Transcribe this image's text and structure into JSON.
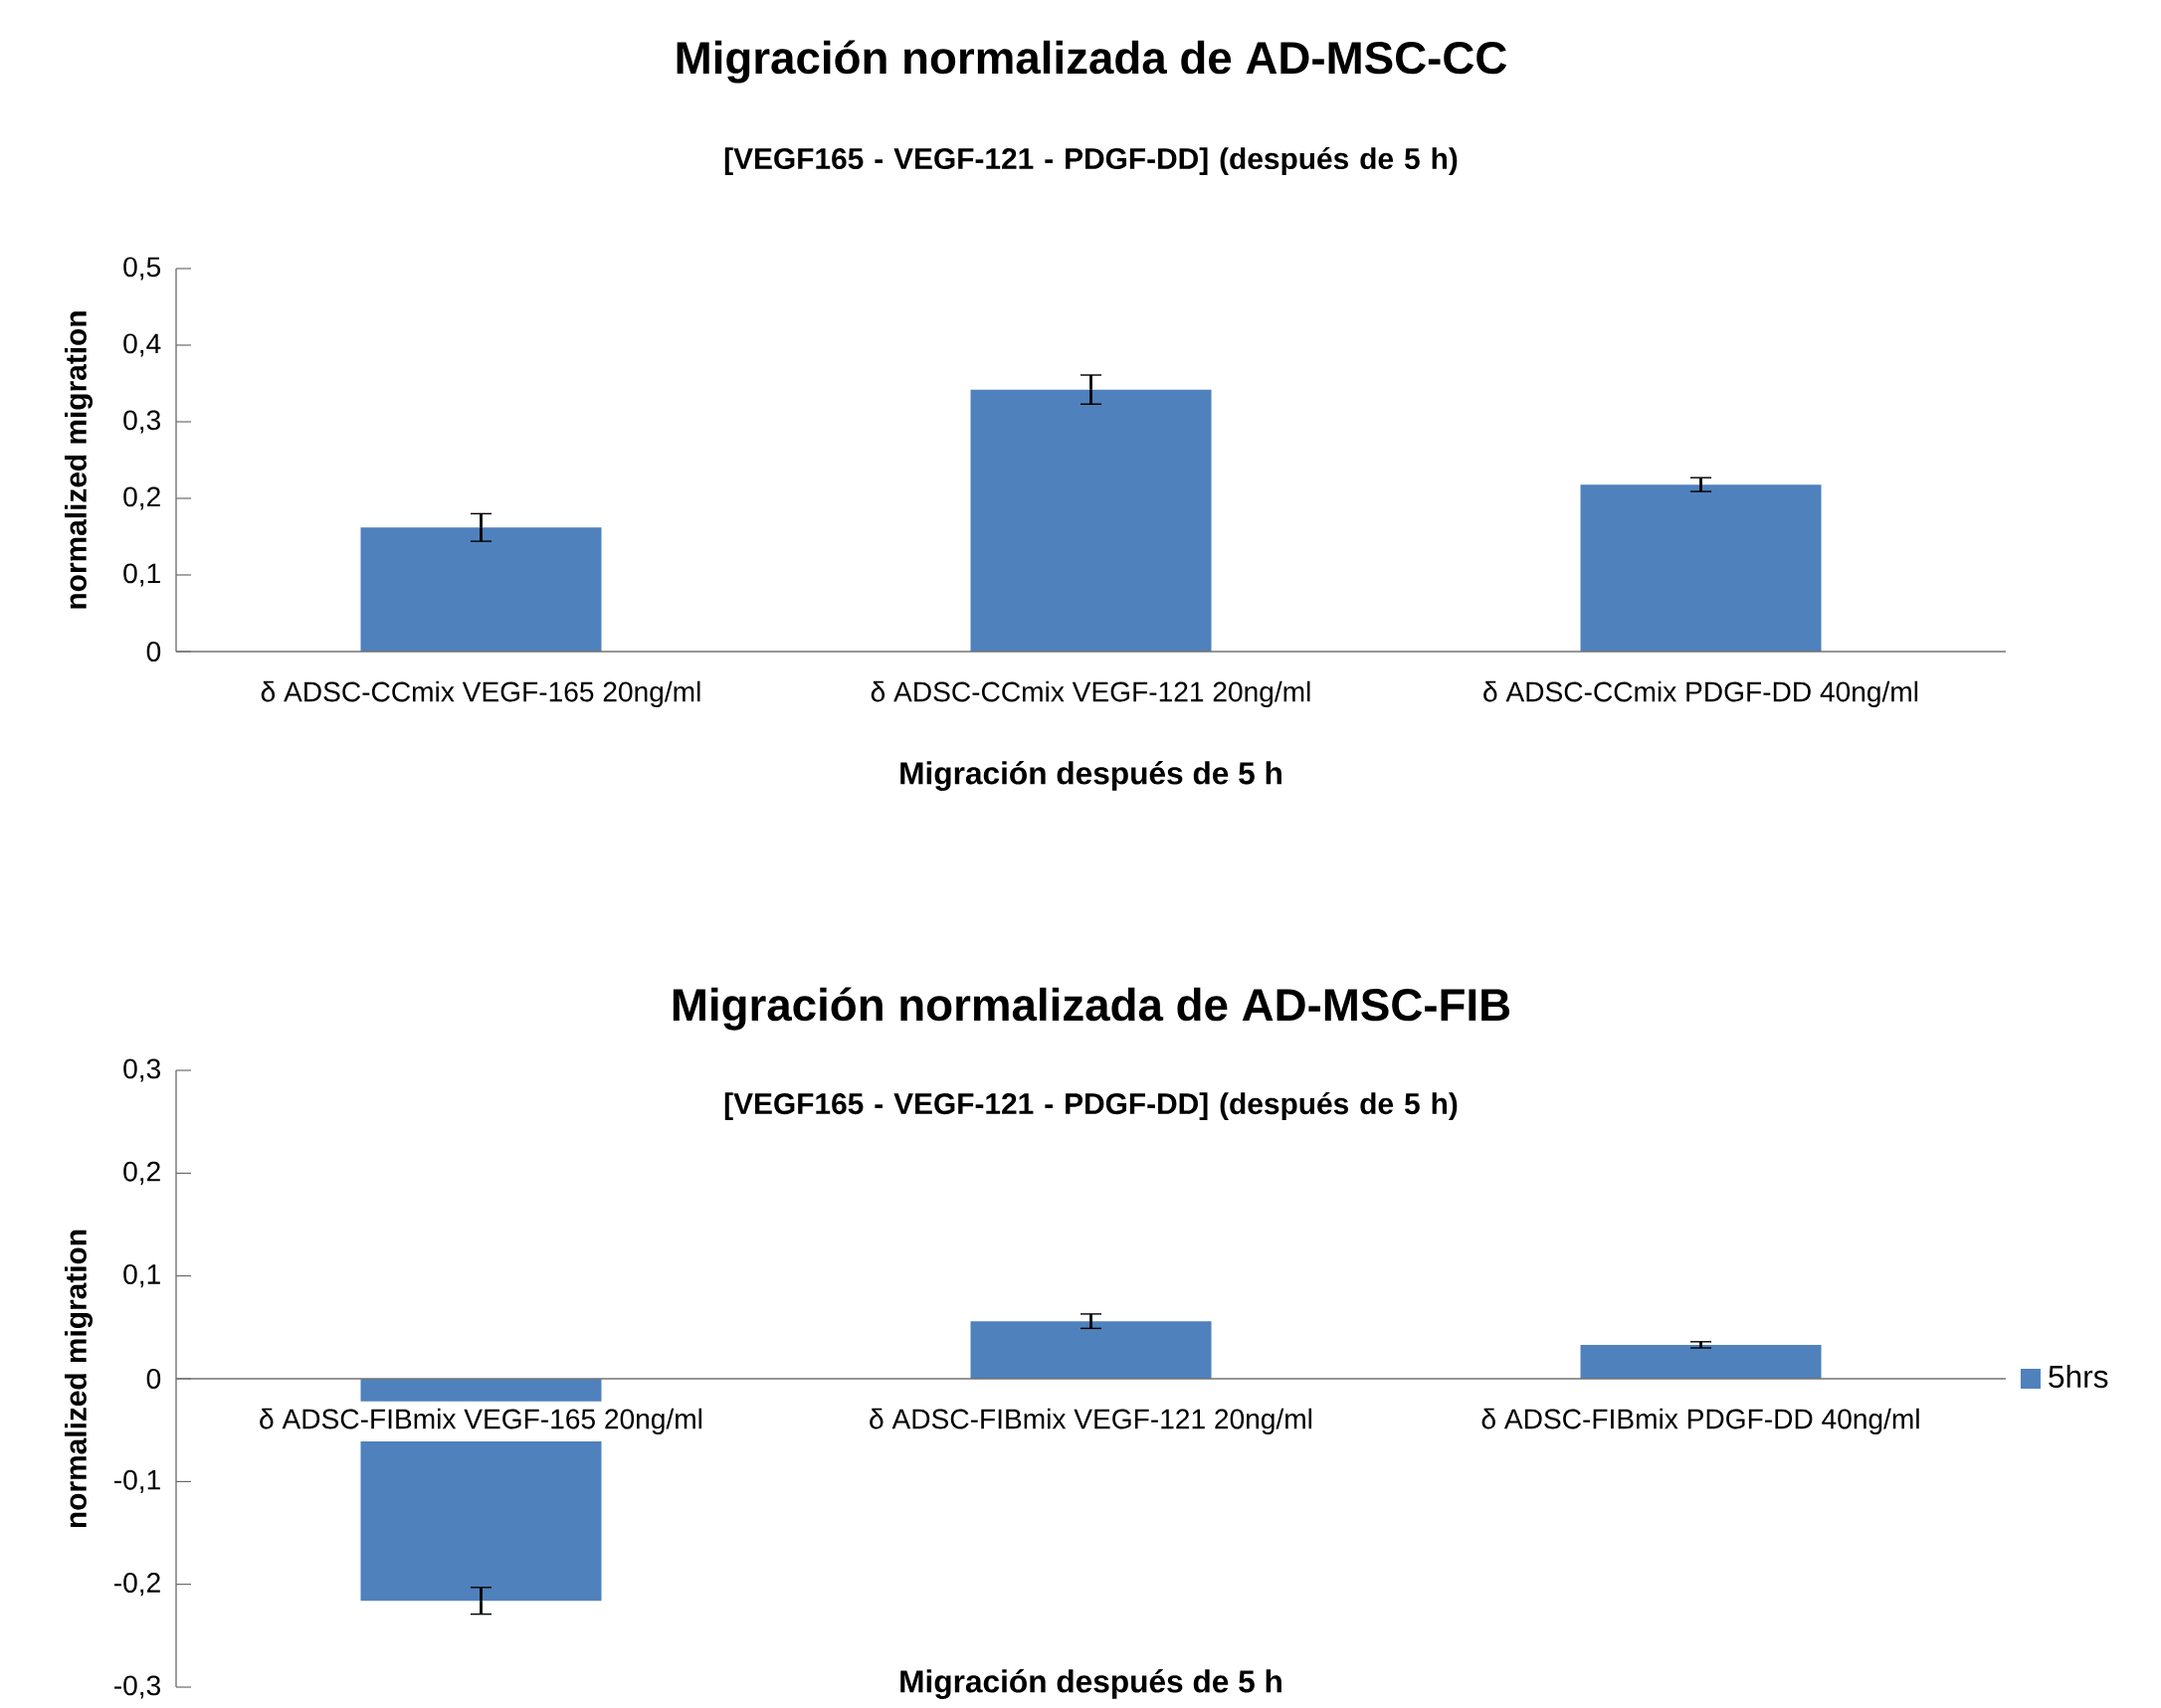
{
  "chart_data": [
    {
      "type": "bar",
      "title": "Migración normalizada de AD-MSC-CC",
      "subtitle": "[VEGF165 - VEGF-121 - PDGF-DD] (después de 5 h)",
      "xlabel": "Migración después de 5 h",
      "ylabel": "normalized migration",
      "categories": [
        "δ ADSC-CCmix VEGF-165 20ng/ml",
        "δ ADSC-CCmix VEGF-121 20ng/ml",
        "δ ADSC-CCmix PDGF-DD 40ng/ml"
      ],
      "values": [
        0.162,
        0.342,
        0.218
      ],
      "errors": [
        0.018,
        0.019,
        0.009
      ],
      "color": "#4f81bd",
      "ylim": [
        0,
        0.5
      ],
      "yticks": [
        0,
        {
          "value": 0.1,
          "label": "0,1"
        },
        {
          "value": 0.2,
          "label": "0,2"
        },
        {
          "value": 0.3,
          "label": "0,3"
        },
        {
          "value": 0.4,
          "label": "0,4"
        },
        {
          "value": 0.5,
          "label": "0,5"
        }
      ]
    },
    {
      "type": "bar",
      "title": "Migración normalizada de AD-MSC-FIB",
      "subtitle": "[VEGF165 - VEGF-121 - PDGF-DD] (después de 5 h)",
      "xlabel": "Migración después de 5 h",
      "ylabel": "normalized migration",
      "categories": [
        "δ ADSC-FIBmix VEGF-165 20ng/ml",
        "δ ADSC-FIBmix VEGF-121 20ng/ml",
        "δ ADSC-FIBmix PDGF-DD 40ng/ml"
      ],
      "series": [
        {
          "name": "5hrs",
          "color": "#4f81bd",
          "values": [
            -0.216,
            0.056,
            0.033
          ],
          "errors": [
            0.013,
            0.007,
            0.003
          ]
        }
      ],
      "legend": "right",
      "ylim": [
        -0.3,
        0.3
      ],
      "yticks": [
        {
          "value": -0.3,
          "label": "-0,3"
        },
        {
          "value": -0.2,
          "label": "-0,2"
        },
        {
          "value": -0.1,
          "label": "-0,1"
        },
        0,
        {
          "value": 0.1,
          "label": "0,1"
        },
        {
          "value": 0.2,
          "label": "0,2"
        },
        {
          "value": 0.3,
          "label": "0,3"
        }
      ]
    }
  ]
}
